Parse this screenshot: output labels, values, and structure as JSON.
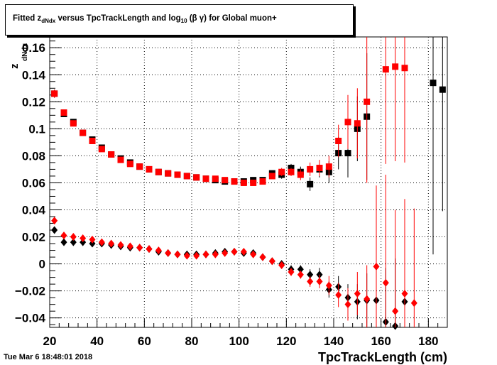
{
  "title": {
    "prefix": "Fitted  z",
    "sub1": "dNdx",
    "middle": "  versus TpcTrackLength and log",
    "sub2": "10",
    "suffix": " (β γ) for Global muon+"
  },
  "timestamp": "Tue Mar  6 18:48:01 2018",
  "chart_data": {
    "type": "scatter",
    "title": "Fitted  z_dNdx  versus TpcTrackLength and log_10 (β γ) for Global muon+",
    "xlabel": "TpcTrackLength (cm)",
    "ylabel": "z_dNdx",
    "ylabel_main": "z",
    "ylabel_sub": "dNdx",
    "xlim": [
      20,
      188
    ],
    "ylim": [
      -0.047,
      0.168
    ],
    "xticks": [
      20,
      40,
      60,
      80,
      100,
      120,
      140,
      160,
      180
    ],
    "yticks": [
      -0.04,
      -0.02,
      0,
      0.02,
      0.04,
      0.06,
      0.08,
      0.1,
      0.12,
      0.14,
      0.16
    ],
    "ytick_labels": [
      "−0.04",
      "−0.02",
      "0",
      "0.02",
      "0.04",
      "0.06",
      "0.08",
      "0.1",
      "0.12",
      "0.14",
      "0.16"
    ],
    "grid": true,
    "series": [
      {
        "color": "#000000",
        "marker": "square",
        "points": [
          [
            22,
            0.126,
            0.003
          ],
          [
            26,
            0.111,
            0.002
          ],
          [
            30,
            0.105,
            0.002
          ],
          [
            34,
            0.097,
            0.002
          ],
          [
            38,
            0.092,
            0.002
          ],
          [
            42,
            0.086,
            0.002
          ],
          [
            46,
            0.081,
            0.001
          ],
          [
            50,
            0.078,
            0.001
          ],
          [
            54,
            0.075,
            0.001
          ],
          [
            58,
            0.072,
            0.001
          ],
          [
            62,
            0.07,
            0.001
          ],
          [
            66,
            0.068,
            0.001
          ],
          [
            70,
            0.067,
            0.001
          ],
          [
            74,
            0.066,
            0.001
          ],
          [
            78,
            0.065,
            0.001
          ],
          [
            82,
            0.064,
            0.001
          ],
          [
            86,
            0.063,
            0.001
          ],
          [
            90,
            0.062,
            0.001
          ],
          [
            94,
            0.061,
            0.001
          ],
          [
            98,
            0.061,
            0.001
          ],
          [
            102,
            0.061,
            0.001
          ],
          [
            106,
            0.062,
            0.002
          ],
          [
            110,
            0.062,
            0.002
          ],
          [
            114,
            0.067,
            0.002
          ],
          [
            118,
            0.066,
            0.003
          ],
          [
            122,
            0.071,
            0.003
          ],
          [
            126,
            0.068,
            0.004
          ],
          [
            130,
            0.059,
            0.005
          ],
          [
            134,
            0.07,
            0.006
          ],
          [
            138,
            0.068,
            0.008
          ],
          [
            142,
            0.082,
            0.012
          ],
          [
            146,
            0.082,
            0.018
          ],
          [
            150,
            0.1,
            0.024
          ],
          [
            154,
            0.109,
            0.047
          ],
          [
            182,
            0.134,
            0.127
          ],
          [
            186,
            0.129,
            0.09
          ]
        ]
      },
      {
        "color": "#ff0000",
        "marker": "square",
        "points": [
          [
            22,
            0.126,
            0.003
          ],
          [
            26,
            0.112,
            0.002
          ],
          [
            30,
            0.104,
            0.002
          ],
          [
            34,
            0.097,
            0.002
          ],
          [
            38,
            0.091,
            0.002
          ],
          [
            42,
            0.085,
            0.002
          ],
          [
            46,
            0.081,
            0.001
          ],
          [
            50,
            0.077,
            0.001
          ],
          [
            54,
            0.074,
            0.001
          ],
          [
            58,
            0.072,
            0.001
          ],
          [
            62,
            0.07,
            0.001
          ],
          [
            66,
            0.068,
            0.001
          ],
          [
            70,
            0.067,
            0.001
          ],
          [
            74,
            0.066,
            0.001
          ],
          [
            78,
            0.065,
            0.001
          ],
          [
            82,
            0.064,
            0.001
          ],
          [
            86,
            0.063,
            0.001
          ],
          [
            90,
            0.063,
            0.001
          ],
          [
            94,
            0.062,
            0.001
          ],
          [
            98,
            0.061,
            0.001
          ],
          [
            102,
            0.06,
            0.001
          ],
          [
            106,
            0.06,
            0.001
          ],
          [
            110,
            0.061,
            0.002
          ],
          [
            114,
            0.065,
            0.002
          ],
          [
            118,
            0.068,
            0.003
          ],
          [
            122,
            0.068,
            0.003
          ],
          [
            126,
            0.066,
            0.004
          ],
          [
            130,
            0.07,
            0.005
          ],
          [
            134,
            0.071,
            0.006
          ],
          [
            138,
            0.072,
            0.008
          ],
          [
            142,
            0.091,
            0.012
          ],
          [
            146,
            0.105,
            0.02
          ],
          [
            150,
            0.104,
            0.026
          ],
          [
            154,
            0.12,
            0.06
          ],
          [
            162,
            0.144,
            0.07
          ],
          [
            166,
            0.146,
            0.07
          ],
          [
            170,
            0.145,
            0.07
          ]
        ]
      },
      {
        "color": "#000000",
        "marker": "diamond",
        "points": [
          [
            22,
            0.025,
            0.001
          ],
          [
            26,
            0.016,
            0.001
          ],
          [
            30,
            0.016,
            0.001
          ],
          [
            34,
            0.016,
            0.001
          ],
          [
            38,
            0.015,
            0.001
          ],
          [
            42,
            0.015,
            0.001
          ],
          [
            46,
            0.014,
            0.001
          ],
          [
            50,
            0.013,
            0.001
          ],
          [
            54,
            0.012,
            0.001
          ],
          [
            58,
            0.012,
            0.001
          ],
          [
            62,
            0.011,
            0.001
          ],
          [
            66,
            0.009,
            0.001
          ],
          [
            70,
            0.008,
            0.001
          ],
          [
            74,
            0.007,
            0.001
          ],
          [
            78,
            0.007,
            0.001
          ],
          [
            82,
            0.007,
            0.001
          ],
          [
            86,
            0.007,
            0.001
          ],
          [
            90,
            0.008,
            0.001
          ],
          [
            94,
            0.009,
            0.001
          ],
          [
            98,
            0.009,
            0.001
          ],
          [
            102,
            0.008,
            0.001
          ],
          [
            106,
            0.008,
            0.002
          ],
          [
            110,
            0.005,
            0.002
          ],
          [
            114,
            0.002,
            0.002
          ],
          [
            118,
            0.0,
            0.002
          ],
          [
            122,
            -0.004,
            0.003
          ],
          [
            126,
            -0.004,
            0.003
          ],
          [
            130,
            -0.008,
            0.004
          ],
          [
            134,
            -0.008,
            0.005
          ],
          [
            138,
            -0.019,
            0.006
          ],
          [
            142,
            -0.017,
            0.008
          ],
          [
            146,
            -0.025,
            0.01
          ],
          [
            150,
            -0.028,
            0.013
          ],
          [
            154,
            -0.027,
            0.02
          ],
          [
            158,
            -0.027,
            0.03
          ],
          [
            162,
            -0.043,
            0.04
          ],
          [
            166,
            -0.046,
            0.05
          ],
          [
            170,
            -0.028,
            0.06
          ]
        ]
      },
      {
        "color": "#ff0000",
        "marker": "diamond",
        "points": [
          [
            22,
            0.032,
            0.001
          ],
          [
            26,
            0.021,
            0.001
          ],
          [
            30,
            0.02,
            0.001
          ],
          [
            34,
            0.019,
            0.001
          ],
          [
            38,
            0.018,
            0.001
          ],
          [
            42,
            0.016,
            0.001
          ],
          [
            46,
            0.015,
            0.001
          ],
          [
            50,
            0.014,
            0.001
          ],
          [
            54,
            0.013,
            0.001
          ],
          [
            58,
            0.012,
            0.001
          ],
          [
            62,
            0.011,
            0.001
          ],
          [
            66,
            0.01,
            0.001
          ],
          [
            70,
            0.008,
            0.001
          ],
          [
            74,
            0.007,
            0.001
          ],
          [
            78,
            0.006,
            0.001
          ],
          [
            82,
            0.006,
            0.001
          ],
          [
            86,
            0.007,
            0.001
          ],
          [
            90,
            0.007,
            0.001
          ],
          [
            94,
            0.008,
            0.001
          ],
          [
            98,
            0.009,
            0.001
          ],
          [
            102,
            0.009,
            0.001
          ],
          [
            106,
            0.007,
            0.002
          ],
          [
            110,
            0.005,
            0.002
          ],
          [
            114,
            0.002,
            0.002
          ],
          [
            118,
            -0.001,
            0.002
          ],
          [
            122,
            -0.006,
            0.003
          ],
          [
            126,
            -0.008,
            0.003
          ],
          [
            130,
            -0.013,
            0.004
          ],
          [
            134,
            -0.013,
            0.005
          ],
          [
            138,
            -0.016,
            0.007
          ],
          [
            142,
            -0.023,
            0.009
          ],
          [
            146,
            -0.03,
            0.012
          ],
          [
            150,
            -0.022,
            0.016
          ],
          [
            154,
            -0.026,
            0.025
          ],
          [
            158,
            -0.002,
            0.06
          ],
          [
            162,
            -0.014,
            0.08
          ],
          [
            166,
            -0.035,
            0.075
          ],
          [
            170,
            -0.022,
            0.07
          ],
          [
            174,
            -0.029,
            0.07
          ]
        ]
      }
    ]
  }
}
